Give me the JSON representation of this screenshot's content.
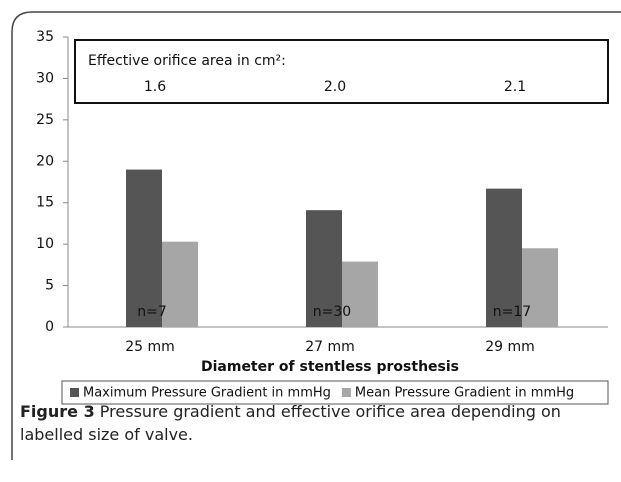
{
  "chart_data": {
    "type": "bar",
    "categories": [
      "25 mm",
      "27 mm",
      "29 mm"
    ],
    "series": [
      {
        "name": "Maximum Pressure Gradient in mmHg",
        "color": "#555555",
        "values": [
          19,
          14.1,
          16.7
        ]
      },
      {
        "name": "Mean Pressure Gradient in mmHg",
        "color": "#a6a6a6",
        "values": [
          10.3,
          7.9,
          9.5
        ]
      }
    ],
    "ylim": [
      0,
      35
    ],
    "yticks": [
      0,
      5,
      10,
      15,
      20,
      25,
      30,
      35
    ],
    "grid": false,
    "x_label": "Diameter of stentless prosthesis",
    "annotation_box": {
      "title": "Effective orifice area in cm²:",
      "labels": [
        "1.6",
        "2.0",
        "2.1"
      ]
    },
    "n_labels": [
      "n=7",
      "n=30",
      "n=17"
    ],
    "legend": "bottom"
  },
  "caption": {
    "label": "Figure 3",
    "text": " Pressure gradient and effective orifice area depending on labelled size of valve."
  }
}
